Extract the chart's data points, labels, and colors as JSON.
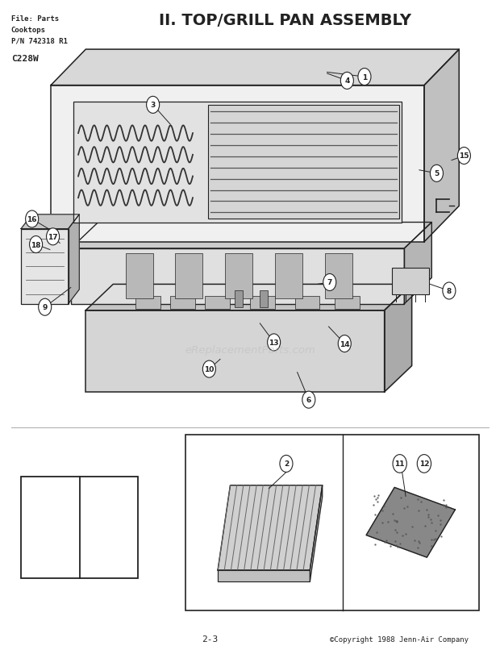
{
  "title": "II. TOP/GRILL PAN ASSEMBLY",
  "file_info": [
    "File: Parts",
    "Cooktops",
    "P/N 742318 R1"
  ],
  "model": "C228W",
  "page": "2-3",
  "copyright": "©Copyright 1988 Jenn-Air Company",
  "bg_color": "#ffffff",
  "line_color": "#222222"
}
